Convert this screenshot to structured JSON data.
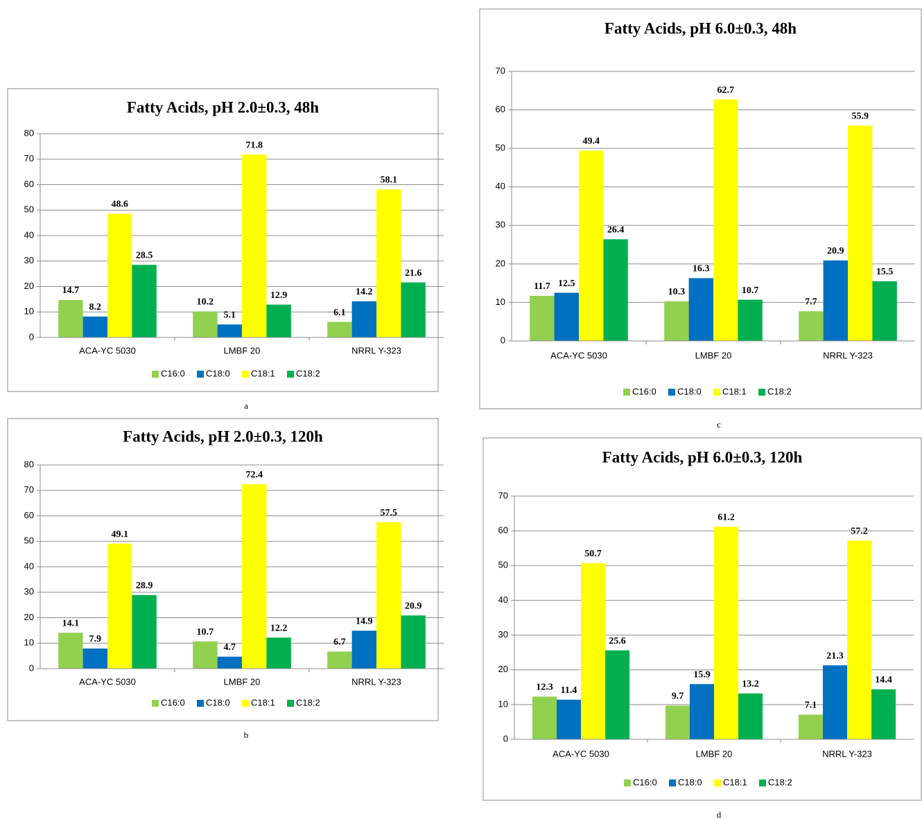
{
  "chart_data": [
    {
      "type": "bar",
      "title": "Fatty Acids, pH 2.0±0.3, 48h",
      "caption": "a",
      "categories": [
        "ACA-YC 5030",
        "LMBF 20",
        "NRRL Y-323"
      ],
      "series": [
        {
          "name": "C16:0",
          "color": "#92d050",
          "values": [
            14.7,
            10.2,
            6.1
          ]
        },
        {
          "name": "C18:0",
          "color": "#0070c0",
          "values": [
            8.2,
            5.1,
            14.2
          ]
        },
        {
          "name": "C18:1",
          "color": "#ffff00",
          "values": [
            48.6,
            71.8,
            58.1
          ]
        },
        {
          "name": "C18:2",
          "color": "#00b050",
          "values": [
            28.5,
            12.9,
            21.6
          ]
        }
      ],
      "ylim": [
        0,
        80
      ],
      "yticks": [
        0,
        10,
        20,
        30,
        40,
        50,
        60,
        70,
        80
      ],
      "grid": true,
      "legend": "bottom"
    },
    {
      "type": "bar",
      "title": "Fatty Acids, pH 2.0±0.3, 120h",
      "caption": "b",
      "categories": [
        "ACA-YC 5030",
        "LMBF 20",
        "NRRL Y-323"
      ],
      "series": [
        {
          "name": "C16:0",
          "color": "#92d050",
          "values": [
            14.1,
            10.7,
            6.7
          ]
        },
        {
          "name": "C18:0",
          "color": "#0070c0",
          "values": [
            7.9,
            4.7,
            14.9
          ]
        },
        {
          "name": "C18:1",
          "color": "#ffff00",
          "values": [
            49.1,
            72.4,
            57.5
          ]
        },
        {
          "name": "C18:2",
          "color": "#00b050",
          "values": [
            28.9,
            12.2,
            20.9
          ]
        }
      ],
      "ylim": [
        0,
        80
      ],
      "yticks": [
        0,
        10,
        20,
        30,
        40,
        50,
        60,
        70,
        80
      ],
      "grid": true,
      "legend": "bottom"
    },
    {
      "type": "bar",
      "title": "Fatty Acids, pH 6.0±0.3, 48h",
      "caption": "c",
      "categories": [
        "ACA-YC 5030",
        "LMBF 20",
        "NRRL Y-323"
      ],
      "series": [
        {
          "name": "C16:0",
          "color": "#92d050",
          "values": [
            11.7,
            10.3,
            7.7
          ]
        },
        {
          "name": "C18:0",
          "color": "#0070c0",
          "values": [
            12.5,
            16.3,
            20.9
          ]
        },
        {
          "name": "C18:1",
          "color": "#ffff00",
          "values": [
            49.4,
            62.7,
            55.9
          ]
        },
        {
          "name": "C18:2",
          "color": "#00b050",
          "values": [
            26.4,
            10.7,
            15.5
          ]
        }
      ],
      "ylim": [
        0,
        70
      ],
      "yticks": [
        0,
        10,
        20,
        30,
        40,
        50,
        60,
        70
      ],
      "grid": true,
      "legend": "bottom"
    },
    {
      "type": "bar",
      "title": "Fatty Acids, pH 6.0±0.3, 120h",
      "caption": "d",
      "categories": [
        "ACA-YC 5030",
        "LMBF 20",
        "NRRL Y-323"
      ],
      "series": [
        {
          "name": "C16:0",
          "color": "#92d050",
          "values": [
            12.3,
            9.7,
            7.1
          ]
        },
        {
          "name": "C18:0",
          "color": "#0070c0",
          "values": [
            11.4,
            15.9,
            21.3
          ]
        },
        {
          "name": "C18:1",
          "color": "#ffff00",
          "values": [
            50.7,
            61.2,
            57.2
          ]
        },
        {
          "name": "C18:2",
          "color": "#00b050",
          "values": [
            25.6,
            13.2,
            14.4
          ]
        }
      ],
      "ylim": [
        0,
        70
      ],
      "yticks": [
        0,
        10,
        20,
        30,
        40,
        50,
        60,
        70
      ],
      "grid": true,
      "legend": "bottom"
    }
  ]
}
